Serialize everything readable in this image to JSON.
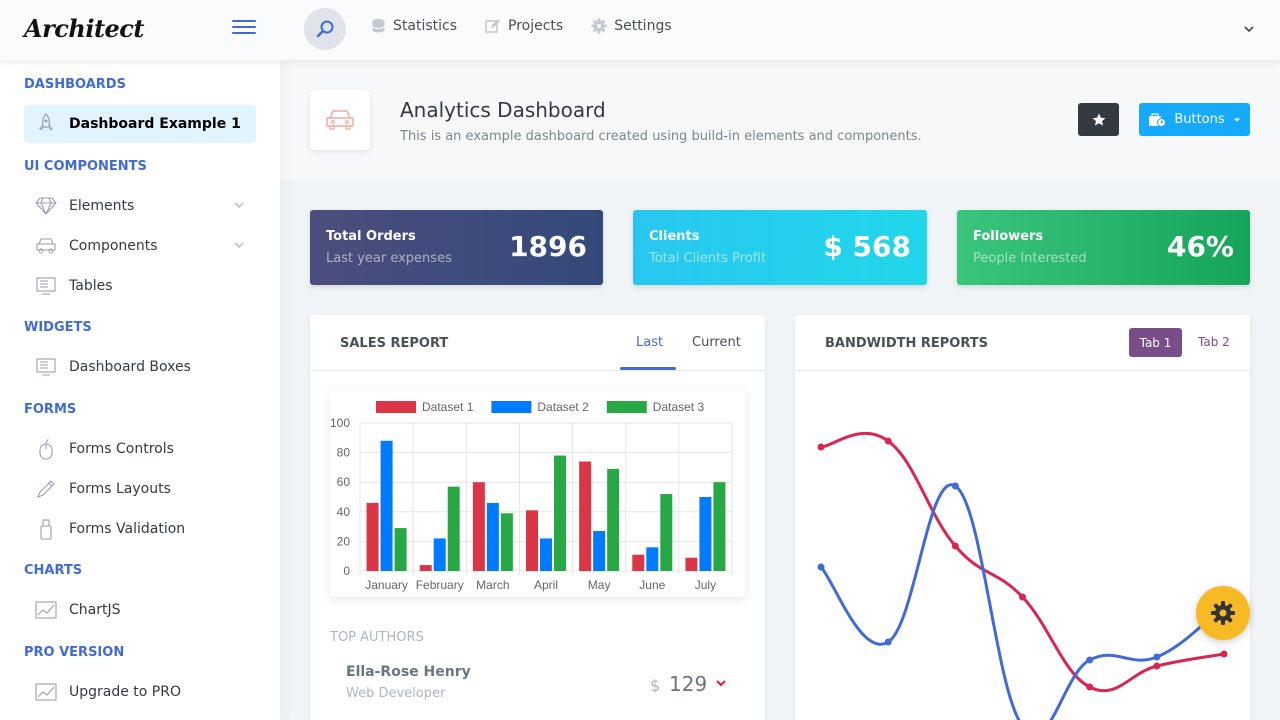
{
  "header": {
    "logo": "Architect",
    "nav": [
      {
        "label": "Statistics",
        "icon": "database-icon"
      },
      {
        "label": "Projects",
        "icon": "edit-icon"
      },
      {
        "label": "Settings",
        "icon": "gear-icon"
      }
    ]
  },
  "sidebar": {
    "sections": [
      {
        "heading": "DASHBOARDS",
        "items": [
          {
            "label": "Dashboard Example 1",
            "icon": "rocket-icon",
            "active": true
          }
        ]
      },
      {
        "heading": "UI COMPONENTS",
        "items": [
          {
            "label": "Elements",
            "icon": "diamond-icon",
            "expandable": true
          },
          {
            "label": "Components",
            "icon": "car-icon",
            "expandable": true
          },
          {
            "label": "Tables",
            "icon": "display-icon"
          }
        ]
      },
      {
        "heading": "WIDGETS",
        "items": [
          {
            "label": "Dashboard Boxes",
            "icon": "display-icon"
          }
        ]
      },
      {
        "heading": "FORMS",
        "items": [
          {
            "label": "Forms Controls",
            "icon": "mouse-icon"
          },
          {
            "label": "Forms Layouts",
            "icon": "eyedropper-icon"
          },
          {
            "label": "Forms Validation",
            "icon": "pendrive-icon"
          }
        ]
      },
      {
        "heading": "CHARTS",
        "items": [
          {
            "label": "ChartJS",
            "icon": "graph-icon"
          }
        ]
      },
      {
        "heading": "PRO VERSION",
        "items": [
          {
            "label": "Upgrade to PRO",
            "icon": "graph-icon"
          }
        ]
      }
    ]
  },
  "page": {
    "title": "Analytics Dashboard",
    "subtitle": "This is an example dashboard created using build-in elements and components.",
    "buttons_label": "Buttons"
  },
  "stats": [
    {
      "title": "Total Orders",
      "subtitle": "Last year expenses",
      "value": "1896",
      "color": "#3f4a7c"
    },
    {
      "title": "Clients",
      "subtitle": "Total Clients Profit",
      "value": "$ 568",
      "color": "#26cfee"
    },
    {
      "title": "Followers",
      "subtitle": "People Interested",
      "value": "46%",
      "color": "#2bb46c"
    }
  ],
  "sales_report": {
    "title": "SALES REPORT",
    "tabs": [
      "Last",
      "Current"
    ],
    "top_authors_label": "TOP AUTHORS",
    "author": {
      "name": "Ella-Rose Henry",
      "role": "Web Developer",
      "currency": "$",
      "value": "129"
    }
  },
  "bandwidth": {
    "title": "BANDWIDTH REPORTS",
    "tabs": [
      "Tab 1",
      "Tab 2"
    ]
  },
  "chart_data": [
    {
      "type": "bar",
      "categories": [
        "January",
        "February",
        "March",
        "April",
        "May",
        "June",
        "July"
      ],
      "series": [
        {
          "name": "Dataset 1",
          "color": "#dc3545",
          "values": [
            46,
            4,
            60,
            41,
            74,
            11,
            9
          ]
        },
        {
          "name": "Dataset 2",
          "color": "#007bff",
          "values": [
            88,
            22,
            46,
            22,
            27,
            16,
            50
          ]
        },
        {
          "name": "Dataset 3",
          "color": "#28a745",
          "values": [
            29,
            57,
            39,
            78,
            69,
            52,
            60
          ]
        }
      ],
      "ylim": [
        0,
        100
      ],
      "yticks": [
        0,
        20,
        40,
        60,
        80,
        100
      ],
      "legend": "top",
      "grid": true
    },
    {
      "type": "line",
      "x": [
        1,
        2,
        3,
        4,
        5,
        6,
        7
      ],
      "series": [
        {
          "color": "#d92550",
          "values": [
            88,
            90,
            55,
            38,
            8,
            15,
            19
          ]
        },
        {
          "color": "#3f6ad8",
          "values": [
            48,
            23,
            75,
            -5,
            17,
            18,
            35
          ]
        }
      ],
      "ylim": [
        -10,
        100
      ],
      "grid": false
    }
  ]
}
